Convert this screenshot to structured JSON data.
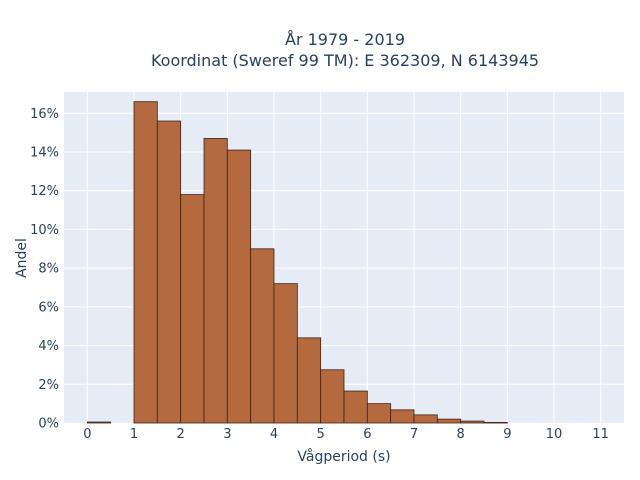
{
  "chart_data": {
    "type": "bar",
    "title_lines": [
      "År 1979 - 2019",
      "Koordinat (Sweref 99 TM): E 362309, N 6143945"
    ],
    "xlabel": "Vågperiod (s)",
    "ylabel": "Andel",
    "bin_width": 0.5,
    "bin_starts": [
      0,
      1,
      1.5,
      2,
      2.5,
      3,
      3.5,
      4,
      4.5,
      5,
      5.5,
      6,
      6.5,
      7,
      7.5,
      8,
      8.5
    ],
    "values": [
      0.05,
      16.6,
      15.6,
      11.8,
      14.7,
      14.1,
      9.0,
      7.2,
      4.4,
      2.75,
      1.65,
      1.0,
      0.68,
      0.42,
      0.2,
      0.1,
      0.03
    ],
    "xlim": [
      -0.5,
      11.5
    ],
    "ylim": [
      0,
      17.1
    ],
    "x_ticks": [
      0,
      1,
      2,
      3,
      4,
      5,
      6,
      7,
      8,
      9,
      10,
      11
    ],
    "x_tick_labels": [
      "0",
      "1",
      "2",
      "3",
      "4",
      "5",
      "6",
      "7",
      "8",
      "9",
      "10",
      "11"
    ],
    "y_ticks": [
      0,
      2,
      4,
      6,
      8,
      10,
      12,
      14,
      16
    ],
    "y_tick_labels": [
      "0%",
      "2%",
      "4%",
      "6%",
      "8%",
      "10%",
      "12%",
      "14%",
      "16%"
    ],
    "grid": true,
    "colors": {
      "bar_fill": "#b46a3e",
      "bar_stroke": "#3d2418",
      "plot_bg": "#e5ecf6",
      "grid": "#ffffff",
      "text": "#2a3f5f"
    }
  }
}
